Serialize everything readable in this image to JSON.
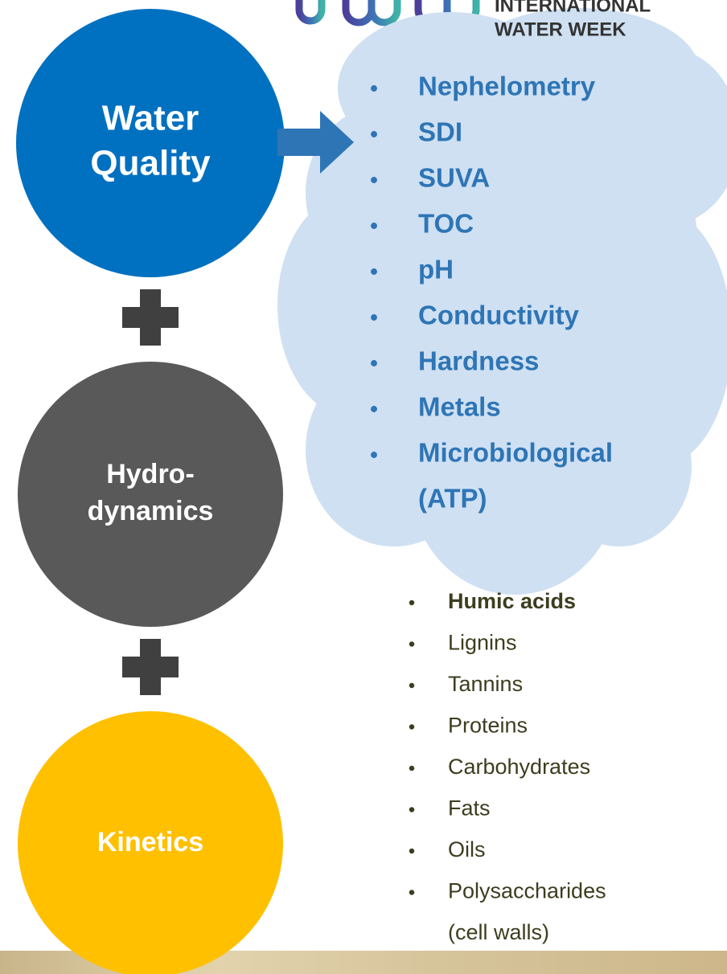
{
  "logo": {
    "lines": [
      "INTERNATIONAL",
      "WATER WEEK"
    ]
  },
  "nodes": [
    {
      "label": [
        "Water",
        "Quality"
      ]
    },
    {
      "label": [
        "Hydro-",
        "dynamics"
      ]
    },
    {
      "label": [
        "Kinetics"
      ]
    }
  ],
  "water_quality_list": {
    "items": [
      [
        "Nephelometry"
      ],
      [
        "SDI"
      ],
      [
        "SUVA"
      ],
      [
        "TOC"
      ],
      [
        "pH"
      ],
      [
        "Conductivity"
      ],
      [
        "Hardness"
      ],
      [
        "Metals"
      ],
      [
        "Microbiological",
        "(ATP)"
      ]
    ]
  },
  "organic_list": {
    "items": [
      [
        "Humic acids"
      ],
      [
        "Lignins"
      ],
      [
        "Tannins"
      ],
      [
        "Proteins"
      ],
      [
        "Carbohydrates"
      ],
      [
        "Fats"
      ],
      [
        "Oils"
      ],
      [
        "Polysaccharides",
        "(cell walls)"
      ]
    ]
  }
}
